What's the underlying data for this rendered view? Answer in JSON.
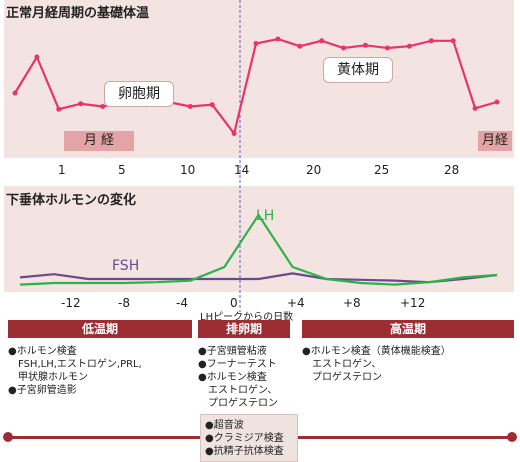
{
  "top": {
    "title": "正常月経周期の基礎体温",
    "follicular_label": "卵胞期",
    "luteal_label": "黄体期",
    "menses_label": "月 経",
    "menses_label_right": "月経",
    "day_ticks": [
      "1",
      "5",
      "10",
      "14",
      "20",
      "25",
      "28"
    ]
  },
  "bottom": {
    "title": "下垂体ホルモンの変化",
    "lh_label": "LH",
    "fsh_label": "FSH",
    "lh_day_ticks": [
      "-12",
      "-8",
      "-4",
      "0",
      "+4",
      "+8",
      "+12"
    ],
    "lh_axis_caption": "LHピークからの日数"
  },
  "colors": {
    "bbt": "#e8336c",
    "lh": "#2eb14b",
    "fsh": "#6a4a8c",
    "header": "#9c2e33",
    "panel": "#f3e4e1"
  },
  "phases": [
    {
      "name": "低温期",
      "items": [
        "●ホルモン検査",
        "　FSH,LH,エストロゲン,PRL,",
        "　甲状腺ホルモン",
        "●子宮卵管造影"
      ]
    },
    {
      "name": "排卵期",
      "items": [
        "●子宮頸管粘液",
        "●フーナーテスト",
        "●ホルモン検査",
        "　エストロゲン、",
        "　プロゲステロン"
      ]
    },
    {
      "name": "高温期",
      "items": [
        "●ホルモン検査（黄体機能検査）",
        "　エストロゲン、",
        "　プロゲステロン"
      ]
    }
  ],
  "anytime_items": [
    "●超音波",
    "●クラミジア検査",
    "●抗精子抗体検査"
  ],
  "chart_data": [
    {
      "type": "line",
      "title": "正常月経周期の基礎体温",
      "x_ticks": [
        "1",
        "5",
        "10",
        "14",
        "20",
        "25",
        "28"
      ],
      "series": [
        {
          "values": [
            3,
            7,
            1.2,
            1.8,
            1.5,
            2,
            1.7,
            2,
            1.5,
            1.7,
            -1.5,
            8.5,
            9,
            8.2,
            8.8,
            8,
            8.3,
            8,
            8.2,
            8.8,
            8.8,
            1.3,
            2
          ]
        }
      ]
    },
    {
      "type": "line",
      "title": "下垂体ホルモンの変化",
      "xlabel": "LHピークからの日数",
      "x_ticks": [
        "-12",
        "-8",
        "-4",
        "0",
        "+4",
        "+8",
        "+12"
      ],
      "series": [
        {
          "name": "LH",
          "values": [
            0.3,
            0.5,
            0.5,
            0.5,
            0.6,
            0.8,
            2.5,
            9,
            2.5,
            1,
            0.5,
            0.3,
            0.6,
            1.2,
            1.5
          ]
        },
        {
          "name": "FSH",
          "values": [
            1.2,
            1.6,
            1,
            1,
            1,
            1,
            1,
            1,
            1.7,
            1,
            0.9,
            0.8,
            0.6,
            1,
            1.5
          ]
        }
      ]
    }
  ]
}
